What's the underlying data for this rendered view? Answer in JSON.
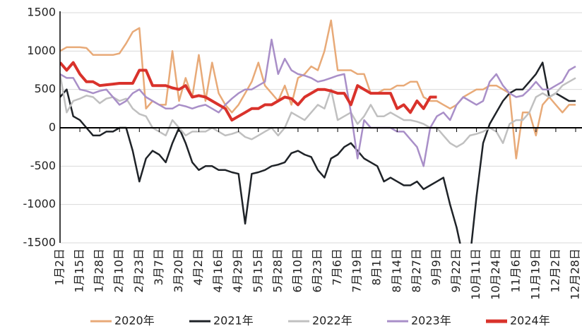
{
  "chart_data": {
    "type": "line",
    "categories": [
      "1月2日",
      null,
      null,
      "1月15日",
      null,
      null,
      "1月28日",
      null,
      null,
      "2月10日",
      null,
      null,
      "2月23日",
      null,
      null,
      "3月7日",
      null,
      null,
      "3月20日",
      null,
      null,
      "4月2日",
      null,
      null,
      "4月16日",
      null,
      null,
      "4月29日",
      null,
      null,
      "5月15日",
      null,
      null,
      "5月28日",
      null,
      null,
      "6月10日",
      null,
      null,
      "6月23日",
      null,
      null,
      "7月6日",
      null,
      null,
      "7月19日",
      null,
      null,
      "8月1日",
      null,
      null,
      "8月14日",
      null,
      null,
      "8月27日",
      null,
      null,
      "9月9日",
      null,
      null,
      "9月22日",
      null,
      null,
      "10月11日",
      null,
      null,
      "10月24日",
      null,
      null,
      "11月6日",
      null,
      null,
      "11月19日",
      null,
      null,
      "12月2日",
      null,
      null,
      "12月28日"
    ],
    "series": [
      {
        "name": "2020年",
        "color": "#e8aa78",
        "values": [
          1000,
          1050,
          1050,
          1050,
          1040,
          950,
          950,
          950,
          950,
          970,
          1100,
          1250,
          1300,
          250,
          350,
          300,
          300,
          1000,
          350,
          650,
          400,
          950,
          350,
          850,
          450,
          300,
          200,
          300,
          450,
          600,
          850,
          550,
          450,
          350,
          550,
          300,
          650,
          700,
          800,
          750,
          1000,
          1400,
          750,
          750,
          750,
          700,
          700,
          450,
          450,
          500,
          500,
          550,
          550,
          600,
          600,
          400,
          350,
          350,
          300,
          250,
          300,
          400,
          450,
          500,
          500,
          550,
          550,
          500,
          450,
          -400,
          200,
          200,
          -100,
          300,
          400,
          300,
          200,
          300,
          300
        ]
      },
      {
        "name": "2021年",
        "color": "#1f2328",
        "values": [
          400,
          500,
          150,
          100,
          0,
          -100,
          -100,
          -50,
          -50,
          0,
          0,
          -300,
          -700,
          -400,
          -300,
          -350,
          -450,
          -200,
          0,
          -200,
          -450,
          -550,
          -500,
          -500,
          -550,
          -550,
          -580,
          -600,
          -1250,
          -600,
          -580,
          -550,
          -500,
          -480,
          -450,
          -330,
          -300,
          -350,
          -380,
          -550,
          -650,
          -400,
          -350,
          -250,
          -200,
          -300,
          -400,
          -450,
          -500,
          -700,
          -650,
          -700,
          -750,
          -750,
          -700,
          -800,
          -750,
          -700,
          -650,
          -1000,
          -1300,
          -1700,
          -1700,
          -900,
          -200,
          50,
          200,
          350,
          450,
          500,
          500,
          600,
          700,
          850,
          400,
          450,
          400,
          350,
          350
        ]
      },
      {
        "name": "2022年",
        "color": "#c0c0c0",
        "values": [
          700,
          200,
          350,
          380,
          420,
          400,
          320,
          380,
          400,
          350,
          380,
          250,
          180,
          150,
          0,
          -50,
          -100,
          100,
          0,
          -100,
          -50,
          -50,
          -50,
          0,
          -50,
          -100,
          -80,
          -50,
          -120,
          -150,
          -100,
          -50,
          0,
          -100,
          0,
          200,
          150,
          100,
          200,
          300,
          250,
          500,
          100,
          150,
          200,
          50,
          150,
          300,
          150,
          150,
          200,
          150,
          100,
          100,
          80,
          50,
          0,
          0,
          -100,
          -200,
          -250,
          -200,
          -100,
          -80,
          -50,
          0,
          -50,
          -200,
          50,
          100,
          100,
          200,
          400,
          450,
          400,
          450,
          550,
          600,
          650
        ]
      },
      {
        "name": "2023年",
        "color": "#a98fc8",
        "values": [
          700,
          650,
          650,
          500,
          480,
          450,
          480,
          500,
          400,
          300,
          350,
          450,
          500,
          400,
          350,
          300,
          250,
          250,
          300,
          280,
          250,
          280,
          300,
          250,
          200,
          300,
          380,
          450,
          500,
          500,
          550,
          600,
          1150,
          700,
          900,
          750,
          700,
          680,
          650,
          600,
          620,
          650,
          680,
          700,
          200,
          -400,
          100,
          0,
          0,
          0,
          0,
          -50,
          -50,
          -150,
          -250,
          -500,
          0,
          150,
          200,
          100,
          300,
          400,
          350,
          300,
          350,
          600,
          700,
          550,
          450,
          400,
          420,
          500,
          600,
          500,
          500,
          550,
          600,
          750,
          800
        ]
      },
      {
        "name": "2024年",
        "color": "#d9322b",
        "values": [
          850,
          750,
          850,
          700,
          600,
          600,
          550,
          560,
          570,
          580,
          580,
          580,
          750,
          750,
          550,
          550,
          550,
          520,
          500,
          550,
          400,
          420,
          400,
          350,
          300,
          250,
          100,
          150,
          200,
          250,
          250,
          300,
          300,
          350,
          400,
          380,
          300,
          400,
          450,
          500,
          500,
          480,
          450,
          450,
          300,
          550,
          500,
          450,
          450,
          450,
          450,
          250,
          300,
          200,
          350,
          250,
          400,
          400,
          null,
          null,
          null,
          null,
          null,
          null,
          null,
          null,
          null,
          null,
          null,
          null,
          null,
          null,
          null,
          null,
          null,
          null,
          null,
          null,
          null
        ]
      }
    ],
    "ylim": [
      -1500,
      1500
    ],
    "yticks": [
      -1500,
      -1000,
      -500,
      0,
      500,
      1000,
      1500
    ],
    "grid": true,
    "legend": "bottom"
  }
}
